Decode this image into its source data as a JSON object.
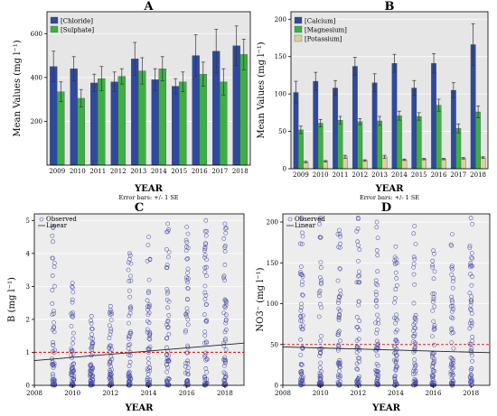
{
  "chart_data": [
    {
      "panel": "A",
      "type": "bar",
      "title": "A",
      "xlabel": "YEAR",
      "ylabel": "Mean Values (mg l⁻¹)",
      "note": "Error bars: +/- 1 SE",
      "categories": [
        "2009",
        "2010",
        "2011",
        "2012",
        "2013",
        "2014",
        "2015",
        "2016",
        "2017",
        "2018"
      ],
      "ylim": [
        0,
        700
      ],
      "yticks": [
        200,
        400,
        600
      ],
      "legend_position": "top-left",
      "series": [
        {
          "name": "[Chloride]",
          "color": "#2e4a9e",
          "values": [
            450,
            440,
            375,
            380,
            485,
            390,
            360,
            500,
            520,
            545
          ],
          "errors": [
            70,
            55,
            40,
            45,
            75,
            50,
            35,
            95,
            100,
            90
          ]
        },
        {
          "name": "[Sulphate]",
          "color": "#3cb043",
          "values": [
            335,
            305,
            395,
            405,
            430,
            440,
            380,
            415,
            380,
            505
          ],
          "errors": [
            45,
            40,
            55,
            35,
            60,
            55,
            45,
            55,
            60,
            70
          ]
        }
      ]
    },
    {
      "panel": "B",
      "type": "bar",
      "title": "B",
      "xlabel": "YEAR",
      "ylabel": "Mean Values (mg l⁻¹)",
      "note": "Error bars: +/- 1 SE",
      "categories": [
        "2009",
        "2010",
        "2011",
        "2012",
        "2013",
        "2014",
        "2015",
        "2016",
        "2017",
        "2018"
      ],
      "ylim": [
        0,
        210
      ],
      "yticks": [
        0,
        50,
        100,
        150,
        200
      ],
      "legend_position": "top-left",
      "series": [
        {
          "name": "[Calcium]",
          "color": "#2e4a9e",
          "values": [
            102,
            117,
            108,
            137,
            115,
            141,
            108,
            141,
            105,
            166
          ],
          "errors": [
            15,
            12,
            10,
            12,
            12,
            12,
            10,
            13,
            10,
            28
          ]
        },
        {
          "name": "[Magnesium]",
          "color": "#3cb043",
          "values": [
            52,
            61,
            65,
            63,
            64,
            71,
            70,
            85,
            54,
            76
          ],
          "errors": [
            5,
            5,
            5,
            4,
            6,
            6,
            5,
            8,
            6,
            8
          ]
        },
        {
          "name": "[Potassium]",
          "color": "#d8d29a",
          "values": [
            9,
            10,
            16,
            11,
            16,
            12,
            13,
            13,
            14,
            15
          ],
          "errors": [
            1,
            1,
            2,
            1,
            2,
            1,
            1,
            1,
            1,
            1
          ]
        }
      ]
    },
    {
      "panel": "C",
      "type": "scatter",
      "title": "C",
      "xlabel": "YEAR",
      "ylabel": "B (mg l⁻¹)",
      "xlim": [
        2008,
        2019
      ],
      "xticks": [
        2008,
        2010,
        2012,
        2014,
        2016,
        2018
      ],
      "ylim": [
        0,
        5.2
      ],
      "yticks": [
        0,
        1,
        2,
        3,
        4,
        5
      ],
      "legend": [
        "Observed",
        "Linear"
      ],
      "legend_position": "top-left",
      "fit_line": {
        "x": [
          2008,
          2019
        ],
        "y": [
          0.75,
          1.28
        ]
      },
      "reference_line": 1.0,
      "series_years": [
        2009,
        2010,
        2011,
        2012,
        2013,
        2014,
        2015,
        2016,
        2017,
        2018
      ],
      "max_values": [
        4.8,
        3.1,
        2.1,
        2.4,
        4.0,
        4.5,
        4.9,
        4.8,
        5.0,
        4.9
      ]
    },
    {
      "panel": "D",
      "type": "scatter",
      "title": "D",
      "xlabel": "YEAR",
      "ylabel": "NO3⁻ (mg l⁻¹)",
      "xlim": [
        2008,
        2019
      ],
      "xticks": [
        2008,
        2010,
        2012,
        2014,
        2016,
        2018
      ],
      "ylim": [
        0,
        210
      ],
      "yticks": [
        0,
        50,
        100,
        150,
        200
      ],
      "legend": [
        "Observed",
        "Linear"
      ],
      "legend_position": "top-left",
      "fit_line": {
        "x": [
          2008,
          2019
        ],
        "y": [
          47,
          40
        ]
      },
      "reference_line": 50,
      "series_years": [
        2009,
        2010,
        2011,
        2012,
        2013,
        2014,
        2015,
        2016,
        2017,
        2018
      ],
      "max_values": [
        205,
        205,
        190,
        205,
        200,
        170,
        195,
        165,
        185,
        205
      ]
    }
  ],
  "colors": {
    "panel_bg": "#e6e6e6",
    "marker": "#4b4fa8",
    "fit": "#222222",
    "reference": "#d62020"
  }
}
